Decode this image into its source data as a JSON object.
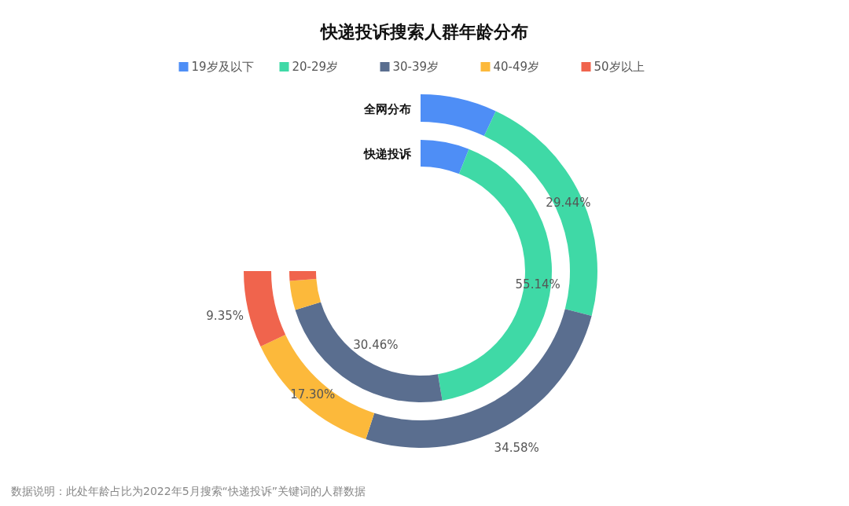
{
  "chart_data": {
    "type": "donut",
    "title": "快递投诉搜索人群年龄分布",
    "categories": [
      "19岁及以下",
      "20-29岁",
      "30-39岁",
      "40-49岁",
      "50岁以上"
    ],
    "colors": [
      "#4e8ef6",
      "#3fd9a6",
      "#5a6e8f",
      "#fcb93b",
      "#f0644d"
    ],
    "series": [
      {
        "name": "全网分布",
        "values": [
          9.33,
          29.44,
          34.58,
          17.3,
          9.35
        ],
        "value_labels": [
          null,
          "29.44%",
          "34.58%",
          "17.30%",
          "9.35%"
        ]
      },
      {
        "name": "快递投诉",
        "values": [
          8.0,
          55.14,
          30.46,
          4.8,
          1.6
        ],
        "value_labels": [
          null,
          "55.14%",
          "30.46%",
          null,
          null
        ]
      }
    ],
    "legend": "top",
    "annotations": [
      "数据说明：此处年龄占比为2022年5月搜索“快递投诉”关键词的人群数据"
    ]
  }
}
